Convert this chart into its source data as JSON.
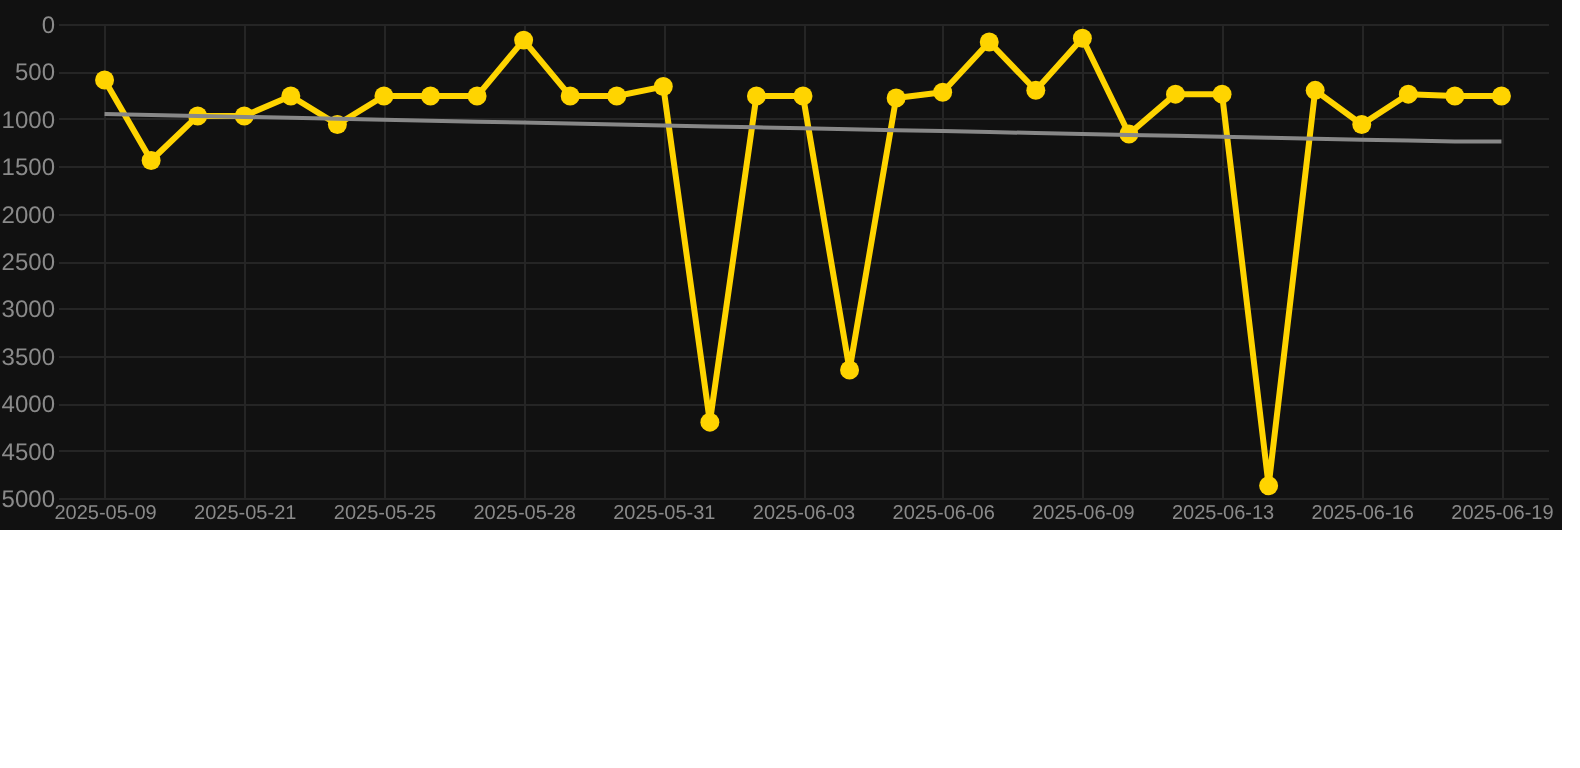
{
  "chart_data": {
    "type": "line",
    "categories": [
      "2025-05-09",
      null,
      null,
      "2025-05-21",
      null,
      null,
      "2025-05-25",
      null,
      null,
      "2025-05-28",
      null,
      null,
      "2025-05-31",
      null,
      null,
      "2025-06-03",
      null,
      null,
      "2025-06-06",
      null,
      null,
      "2025-06-09",
      null,
      null,
      "2025-06-13",
      null,
      null,
      "2025-06-16",
      null,
      null,
      "2025-06-19"
    ],
    "series": [
      {
        "color": "#ffd400",
        "values": [
          590,
          1440,
          970,
          970,
          760,
          1060,
          760,
          760,
          760,
          170,
          760,
          760,
          660,
          4200,
          760,
          760,
          3650,
          780,
          720,
          190,
          700,
          150,
          1160,
          740,
          740,
          4870,
          700,
          1060,
          740,
          760,
          760
        ]
      },
      {
        "color": "#888888",
        "marker": "none",
        "values": [
          950,
          960,
          970,
          980,
          990,
          1000,
          1010,
          1020,
          1030,
          1040,
          1050,
          1060,
          1070,
          1080,
          1090,
          1100,
          1110,
          1120,
          1130,
          1140,
          1150,
          1160,
          1170,
          1180,
          1190,
          1200,
          1210,
          1220,
          1230,
          1240,
          1240
        ]
      }
    ],
    "ylim": [
      5000,
      0
    ],
    "yticks": [
      0,
      500,
      1000,
      1500,
      2000,
      2500,
      3000,
      3500,
      4000,
      4500,
      5000
    ],
    "grid": true,
    "marker": "circle",
    "line_style": "solid",
    "legend": false
  }
}
